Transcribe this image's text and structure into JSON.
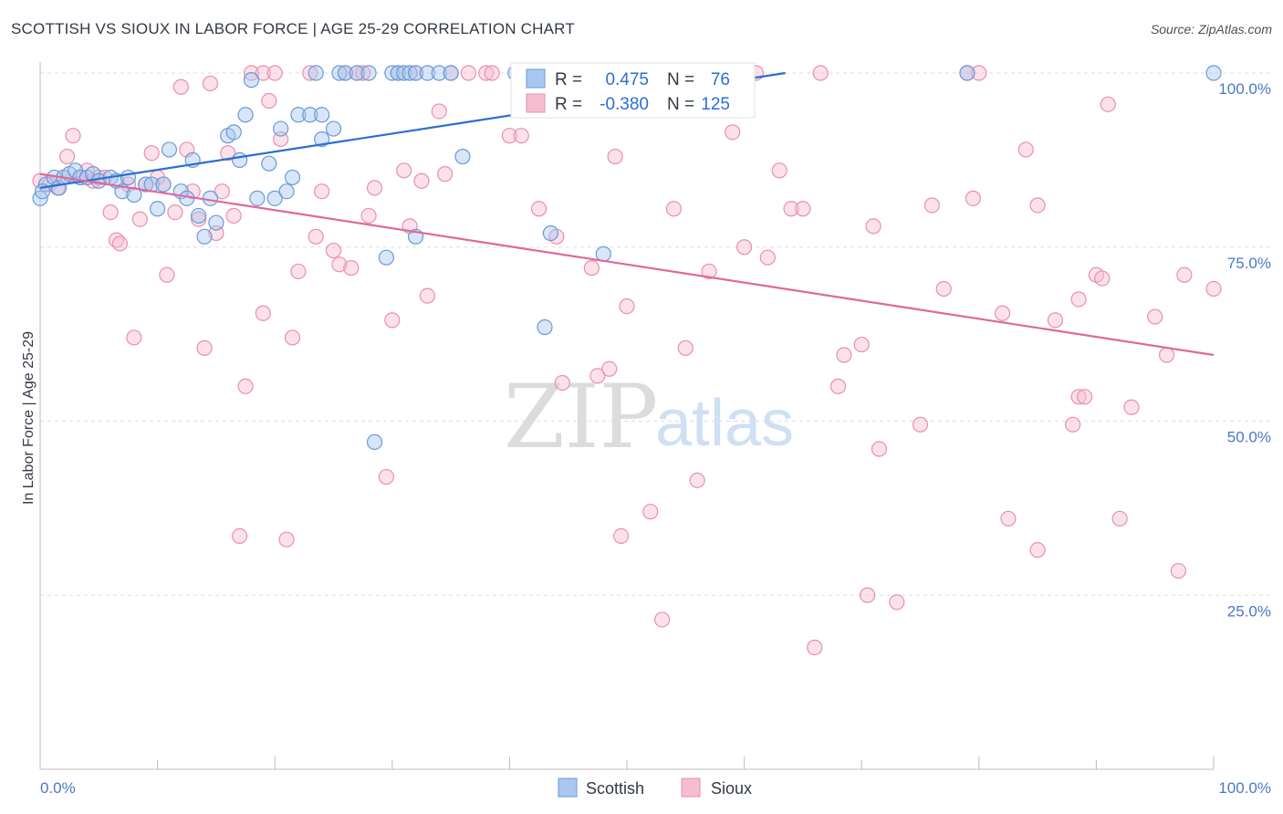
{
  "title": "SCOTTISH VS SIOUX IN LABOR FORCE | AGE 25-29 CORRELATION CHART",
  "source": "Source: ZipAtlas.com",
  "watermark": {
    "left": "ZIP",
    "right": "atlas"
  },
  "legend": {
    "r_label": "R =",
    "n_label": "N =",
    "scottish": {
      "r": "0.475",
      "n": "76"
    },
    "sioux": {
      "r": "-0.380",
      "n": "125"
    }
  },
  "colors": {
    "scottish_fill": "#a9c8f0",
    "scottish_stroke": "#6a9ad8",
    "scottish_line": "#2a6fd0",
    "sioux_fill": "#f6bdd0",
    "sioux_stroke": "#e98fb0",
    "sioux_line": "#e0689a",
    "axis_text": "#4a78c8",
    "grid": "#dedede"
  },
  "chart_data": {
    "type": "scatter",
    "title": "SCOTTISH VS SIOUX IN LABOR FORCE | AGE 25-29 CORRELATION CHART",
    "xlabel": "",
    "ylabel": "In Labor Force | Age 25-29",
    "xlim": [
      0,
      100
    ],
    "ylim": [
      0,
      100
    ],
    "x_tick_labels": [
      "0.0%",
      "100.0%"
    ],
    "y_tick_labels": [
      "25.0%",
      "50.0%",
      "75.0%",
      "100.0%"
    ],
    "y_ticks": [
      25,
      50,
      75,
      100
    ],
    "grid": true,
    "legend_position": "top-center",
    "series": [
      {
        "name": "Scottish",
        "r": 0.475,
        "n": 76,
        "trend": {
          "x0": 0,
          "y0": 83.5,
          "x1": 63.5,
          "y1": 100
        },
        "points": [
          [
            0,
            82
          ],
          [
            0.5,
            84
          ],
          [
            1.2,
            85
          ],
          [
            1.6,
            83.5
          ],
          [
            2,
            85
          ],
          [
            2.5,
            85.5
          ],
          [
            3,
            86
          ],
          [
            3.4,
            85
          ],
          [
            4,
            85
          ],
          [
            4.5,
            85.5
          ],
          [
            5,
            84.5
          ],
          [
            6,
            85
          ],
          [
            6.5,
            84.5
          ],
          [
            7,
            83
          ],
          [
            7.5,
            85
          ],
          [
            8,
            82.5
          ],
          [
            9,
            84
          ],
          [
            9.5,
            84
          ],
          [
            10,
            80.5
          ],
          [
            10.5,
            84
          ],
          [
            11,
            89
          ],
          [
            12,
            83
          ],
          [
            12.5,
            82
          ],
          [
            13,
            87.5
          ],
          [
            13.5,
            79.5
          ],
          [
            14,
            76.5
          ],
          [
            14.5,
            82
          ],
          [
            15,
            78.5
          ],
          [
            16,
            91
          ],
          [
            17,
            87.5
          ],
          [
            16.5,
            91.5
          ],
          [
            17.5,
            94
          ],
          [
            18,
            99
          ],
          [
            18.5,
            82
          ],
          [
            19.5,
            87
          ],
          [
            20,
            82
          ],
          [
            20.5,
            92
          ],
          [
            21,
            83
          ],
          [
            21.5,
            85
          ],
          [
            22,
            94
          ],
          [
            23,
            94
          ],
          [
            24,
            90.5
          ],
          [
            23.5,
            100
          ],
          [
            24,
            94
          ],
          [
            25,
            92
          ],
          [
            25.5,
            100
          ],
          [
            26,
            100
          ],
          [
            27,
            100
          ],
          [
            28,
            100
          ],
          [
            28.5,
            47
          ],
          [
            29.5,
            73.5
          ],
          [
            30,
            100
          ],
          [
            30.5,
            100
          ],
          [
            31,
            100
          ],
          [
            31.5,
            100
          ],
          [
            32,
            100
          ],
          [
            32,
            76.5
          ],
          [
            33,
            100
          ],
          [
            34,
            100
          ],
          [
            35,
            100
          ],
          [
            36,
            88
          ],
          [
            40.5,
            100
          ],
          [
            41,
            100
          ],
          [
            42,
            100
          ],
          [
            43,
            100
          ],
          [
            43.5,
            77
          ],
          [
            43,
            63.5
          ],
          [
            44,
            100
          ],
          [
            45,
            100
          ],
          [
            45.5,
            100
          ],
          [
            48,
            74
          ],
          [
            52,
            100
          ],
          [
            58,
            100
          ],
          [
            79,
            100
          ],
          [
            100,
            100
          ],
          [
            0.2,
            83
          ]
        ]
      },
      {
        "name": "Sioux",
        "r": -0.38,
        "n": 125,
        "trend": {
          "x0": 0,
          "y0": 85.5,
          "x1": 100,
          "y1": 59.5
        },
        "points": [
          [
            0,
            84.5
          ],
          [
            0.8,
            84
          ],
          [
            1.5,
            83.5
          ],
          [
            2,
            85
          ],
          [
            2.3,
            88
          ],
          [
            2.8,
            91
          ],
          [
            3.5,
            85
          ],
          [
            4,
            86
          ],
          [
            4.5,
            84.5
          ],
          [
            5,
            85
          ],
          [
            5.5,
            85
          ],
          [
            6,
            80
          ],
          [
            6.5,
            76
          ],
          [
            6.8,
            75.5
          ],
          [
            7.5,
            84
          ],
          [
            8,
            62
          ],
          [
            8.5,
            79
          ],
          [
            9,
            84
          ],
          [
            9.5,
            88.5
          ],
          [
            10,
            85
          ],
          [
            10.5,
            84
          ],
          [
            10.8,
            71
          ],
          [
            11.5,
            80
          ],
          [
            12,
            98
          ],
          [
            12.5,
            89
          ],
          [
            13,
            83
          ],
          [
            13.5,
            79
          ],
          [
            14,
            60.5
          ],
          [
            14.5,
            98.5
          ],
          [
            15,
            77
          ],
          [
            15.5,
            83
          ],
          [
            16,
            88.5
          ],
          [
            16.5,
            79.5
          ],
          [
            17,
            33.5
          ],
          [
            17.5,
            55
          ],
          [
            18,
            100
          ],
          [
            19,
            65.5
          ],
          [
            19.5,
            96
          ],
          [
            19,
            100
          ],
          [
            20,
            100
          ],
          [
            20.5,
            90.5
          ],
          [
            21,
            33
          ],
          [
            21.5,
            62
          ],
          [
            22,
            71.5
          ],
          [
            23,
            100
          ],
          [
            23.5,
            76.5
          ],
          [
            24,
            83
          ],
          [
            25,
            74.5
          ],
          [
            25.5,
            72.5
          ],
          [
            26,
            100
          ],
          [
            26.5,
            72
          ],
          [
            27,
            100
          ],
          [
            27.5,
            100
          ],
          [
            28,
            79.5
          ],
          [
            28.5,
            83.5
          ],
          [
            29.5,
            42
          ],
          [
            30,
            64.5
          ],
          [
            30.5,
            100
          ],
          [
            31,
            86
          ],
          [
            31.5,
            78
          ],
          [
            32,
            100
          ],
          [
            32.5,
            84.5
          ],
          [
            33,
            68
          ],
          [
            34,
            94.5
          ],
          [
            34.5,
            85.5
          ],
          [
            35,
            100
          ],
          [
            36.5,
            100
          ],
          [
            38,
            100
          ],
          [
            38.5,
            100
          ],
          [
            40,
            91
          ],
          [
            41,
            91
          ],
          [
            42.5,
            80.5
          ],
          [
            43,
            100
          ],
          [
            44,
            76.5
          ],
          [
            44.5,
            55.5
          ],
          [
            47,
            72
          ],
          [
            47.5,
            56.5
          ],
          [
            48.5,
            57.5
          ],
          [
            49,
            88
          ],
          [
            49.5,
            33.5
          ],
          [
            50,
            66.5
          ],
          [
            52,
            37
          ],
          [
            53,
            21.5
          ],
          [
            54,
            80.5
          ],
          [
            55,
            60.5
          ],
          [
            56,
            41.5
          ],
          [
            56.5,
            100
          ],
          [
            57,
            71.5
          ],
          [
            59,
            91.5
          ],
          [
            60,
            75
          ],
          [
            61,
            100
          ],
          [
            62,
            73.5
          ],
          [
            63,
            86
          ],
          [
            64,
            80.5
          ],
          [
            65,
            80.5
          ],
          [
            66,
            17.5
          ],
          [
            66.5,
            100
          ],
          [
            68,
            55
          ],
          [
            68.5,
            59.5
          ],
          [
            70,
            61
          ],
          [
            70.5,
            25
          ],
          [
            71,
            78
          ],
          [
            71.5,
            46
          ],
          [
            73,
            24
          ],
          [
            75,
            49.5
          ],
          [
            76,
            81
          ],
          [
            77,
            69
          ],
          [
            79,
            100
          ],
          [
            79.5,
            82
          ],
          [
            80,
            100
          ],
          [
            82,
            65.5
          ],
          [
            82.5,
            36
          ],
          [
            84,
            89
          ],
          [
            85,
            31.5
          ],
          [
            85,
            81
          ],
          [
            86.5,
            64.5
          ],
          [
            88,
            49.5
          ],
          [
            88.5,
            53.5
          ],
          [
            88.5,
            67.5
          ],
          [
            89,
            53.5
          ],
          [
            90,
            71
          ],
          [
            90.5,
            70.5
          ],
          [
            91,
            95.5
          ],
          [
            92,
            36
          ],
          [
            93,
            52
          ],
          [
            95,
            65
          ],
          [
            96,
            59.5
          ],
          [
            97,
            28.5
          ],
          [
            97.5,
            71
          ],
          [
            100,
            69
          ]
        ]
      }
    ]
  }
}
